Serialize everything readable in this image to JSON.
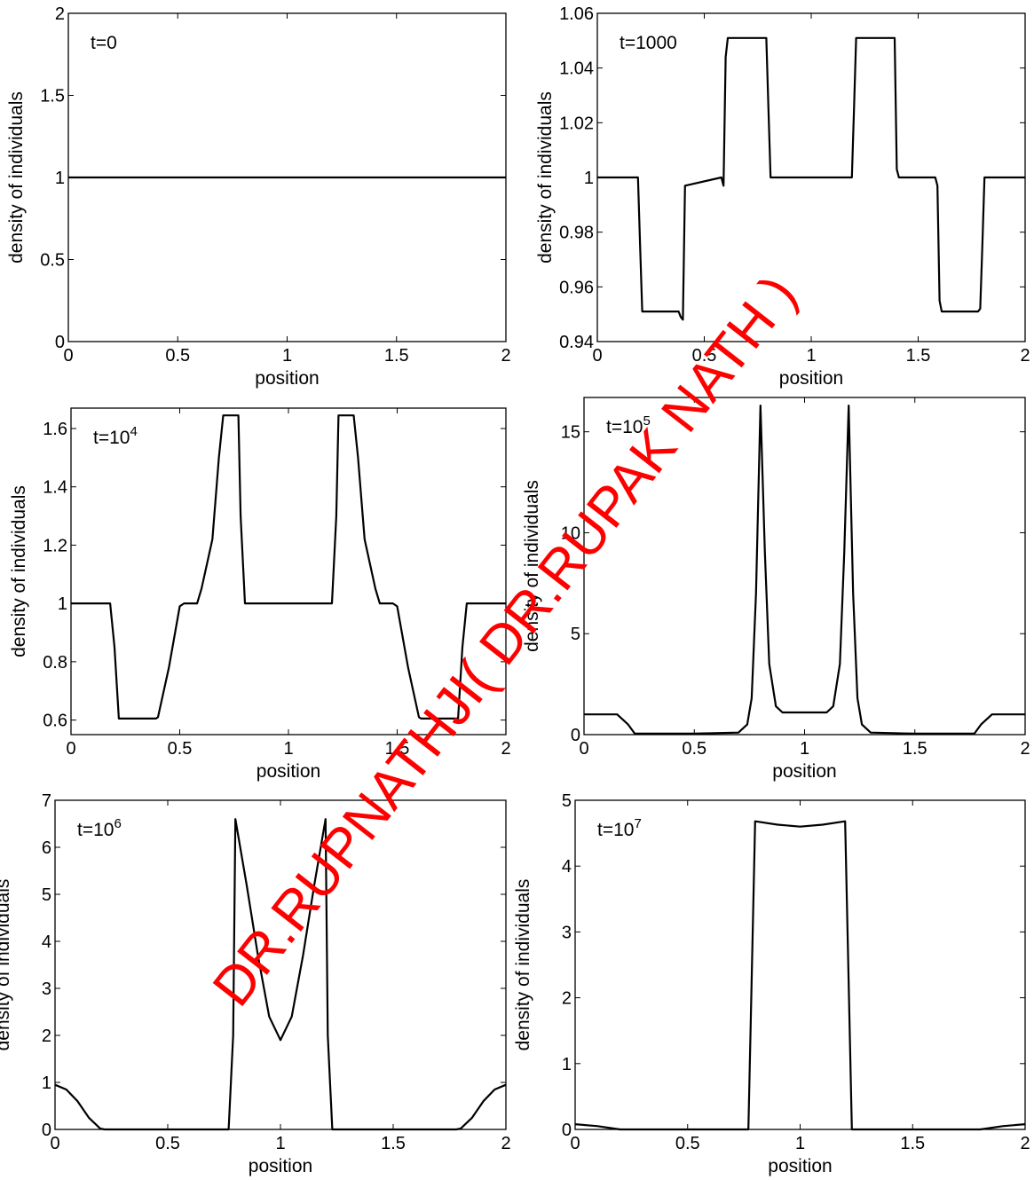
{
  "watermark": "DR.RUPNATHJI( DR.RUPAK NATH )",
  "colors": {
    "line": "#000000",
    "watermark": "#ff0000",
    "background": "#ffffff"
  },
  "chart_data": [
    {
      "type": "line",
      "panel_label": {
        "base": "t=0",
        "exp": ""
      },
      "xlabel": "position",
      "ylabel": "density of individuals",
      "xlim": [
        0,
        2
      ],
      "ylim": [
        0,
        2
      ],
      "xticks": [
        0,
        0.5,
        1,
        1.5,
        2
      ],
      "xtick_labels": [
        "0",
        "0.5",
        "1",
        "1.5",
        "2"
      ],
      "yticks": [
        0,
        0.5,
        1,
        1.5,
        2
      ],
      "ytick_labels": [
        "0",
        "0.5",
        "1",
        "1.5",
        "2"
      ],
      "grid": false,
      "x": [
        0,
        2
      ],
      "y": [
        1,
        1
      ]
    },
    {
      "type": "line",
      "panel_label": {
        "base": "t=1000",
        "exp": ""
      },
      "xlabel": "position",
      "ylabel": "density of individuals",
      "xlim": [
        0,
        2
      ],
      "ylim": [
        0.94,
        1.06
      ],
      "xticks": [
        0,
        0.5,
        1,
        1.5,
        2
      ],
      "xtick_labels": [
        "0",
        "0.5",
        "1",
        "1.5",
        "2"
      ],
      "yticks": [
        0.94,
        0.96,
        0.98,
        1,
        1.02,
        1.04,
        1.06
      ],
      "ytick_labels": [
        "0.94",
        "0.96",
        "0.98",
        "1",
        "1.02",
        "1.04",
        "1.06"
      ],
      "grid": false,
      "x": [
        0,
        0.19,
        0.2,
        0.21,
        0.38,
        0.39,
        0.4,
        0.41,
        0.58,
        0.59,
        0.6,
        0.61,
        0.79,
        0.8,
        0.81,
        1.19,
        1.2,
        1.21,
        1.39,
        1.4,
        1.41,
        1.58,
        1.59,
        1.6,
        1.61,
        1.78,
        1.79,
        1.8,
        1.81,
        2
      ],
      "y": [
        1,
        1,
        0.975,
        0.951,
        0.951,
        0.949,
        0.948,
        0.997,
        1,
        0.997,
        1.044,
        1.051,
        1.051,
        1.025,
        1,
        1,
        1.025,
        1.051,
        1.051,
        1.003,
        1,
        1,
        0.997,
        0.955,
        0.951,
        0.951,
        0.952,
        0.975,
        1,
        1
      ]
    },
    {
      "type": "line",
      "panel_label": {
        "base": "t=10",
        "exp": "4"
      },
      "xlabel": "position",
      "ylabel": "density of individuals",
      "xlim": [
        0,
        2
      ],
      "ylim": [
        0.55,
        1.67
      ],
      "xticks": [
        0,
        0.5,
        1,
        1.5,
        2
      ],
      "xtick_labels": [
        "0",
        "0.5",
        "1",
        "1.5",
        "2"
      ],
      "yticks": [
        0.6,
        0.8,
        1,
        1.2,
        1.4,
        1.6
      ],
      "ytick_labels": [
        "0.6",
        "0.8",
        "1",
        "1.2",
        "1.4",
        "1.6"
      ],
      "grid": false,
      "x": [
        0,
        0.18,
        0.2,
        0.22,
        0.39,
        0.4,
        0.45,
        0.5,
        0.52,
        0.58,
        0.6,
        0.65,
        0.68,
        0.7,
        0.77,
        0.78,
        0.8,
        1.2,
        1.22,
        1.23,
        1.3,
        1.32,
        1.35,
        1.4,
        1.42,
        1.48,
        1.5,
        1.55,
        1.6,
        1.61,
        1.78,
        1.8,
        1.82,
        2
      ],
      "y": [
        1,
        1,
        0.85,
        0.605,
        0.605,
        0.61,
        0.78,
        0.99,
        1,
        1.0,
        1.05,
        1.22,
        1.5,
        1.645,
        1.645,
        1.3,
        1.0,
        1.0,
        1.3,
        1.645,
        1.645,
        1.5,
        1.22,
        1.05,
        1.0,
        1.0,
        0.99,
        0.78,
        0.61,
        0.605,
        0.605,
        0.85,
        1,
        1
      ]
    },
    {
      "type": "line",
      "panel_label": {
        "base": "t=10",
        "exp": "5"
      },
      "xlabel": "position",
      "ylabel": "density of individuals",
      "xlim": [
        0,
        2
      ],
      "ylim": [
        0,
        16.7
      ],
      "xticks": [
        0,
        0.5,
        1,
        1.5,
        2
      ],
      "xtick_labels": [
        "0",
        "0.5",
        "1",
        "1.5",
        "2"
      ],
      "yticks": [
        0,
        5,
        10,
        15
      ],
      "ytick_labels": [
        "0",
        "5",
        "10",
        "15"
      ],
      "grid": false,
      "x": [
        0,
        0.15,
        0.2,
        0.23,
        0.5,
        0.7,
        0.74,
        0.76,
        0.78,
        0.8,
        0.82,
        0.84,
        0.87,
        0.9,
        1.1,
        1.13,
        1.16,
        1.18,
        1.2,
        1.22,
        1.24,
        1.26,
        1.3,
        1.5,
        1.77,
        1.8,
        1.85,
        2
      ],
      "y": [
        1,
        1,
        0.5,
        0.05,
        0.05,
        0.1,
        0.5,
        1.8,
        7,
        16.3,
        9,
        3.5,
        1.4,
        1.1,
        1.1,
        1.4,
        3.5,
        9,
        16.3,
        7,
        1.8,
        0.5,
        0.1,
        0.05,
        0.05,
        0.5,
        1,
        1
      ]
    },
    {
      "type": "line",
      "panel_label": {
        "base": "t=10",
        "exp": "6"
      },
      "xlabel": "position",
      "ylabel": "density of individuals",
      "xlim": [
        0,
        2
      ],
      "ylim": [
        0,
        7
      ],
      "xticks": [
        0,
        0.5,
        1,
        1.5,
        2
      ],
      "xtick_labels": [
        "0",
        "0.5",
        "1",
        "1.5",
        "2"
      ],
      "yticks": [
        0,
        1,
        2,
        3,
        4,
        5,
        6,
        7
      ],
      "ytick_labels": [
        "0",
        "1",
        "2",
        "3",
        "4",
        "5",
        "6",
        "7"
      ],
      "grid": false,
      "x": [
        0,
        0.05,
        0.1,
        0.15,
        0.2,
        0.22,
        0.5,
        0.77,
        0.79,
        0.8,
        0.85,
        0.9,
        0.95,
        1.0,
        1.05,
        1.1,
        1.15,
        1.2,
        1.21,
        1.23,
        1.5,
        1.78,
        1.8,
        1.85,
        1.9,
        1.95,
        2
      ],
      "y": [
        0.95,
        0.85,
        0.6,
        0.25,
        0.02,
        0.0,
        0.0,
        0.0,
        2.0,
        6.6,
        5.2,
        3.7,
        2.4,
        1.9,
        2.4,
        3.7,
        5.2,
        6.6,
        2.0,
        0.0,
        0.0,
        0.0,
        0.02,
        0.25,
        0.6,
        0.85,
        0.95
      ]
    },
    {
      "type": "line",
      "panel_label": {
        "base": "t=10",
        "exp": "7"
      },
      "xlabel": "position",
      "ylabel": "density of individuals",
      "xlim": [
        0,
        2
      ],
      "ylim": [
        0,
        5
      ],
      "xticks": [
        0,
        0.5,
        1,
        1.5,
        2
      ],
      "xtick_labels": [
        "0",
        "0.5",
        "1",
        "1.5",
        "2"
      ],
      "yticks": [
        0,
        1,
        2,
        3,
        4,
        5
      ],
      "ytick_labels": [
        "0",
        "1",
        "2",
        "3",
        "4",
        "5"
      ],
      "grid": false,
      "x": [
        0,
        0.1,
        0.2,
        0.5,
        0.77,
        0.8,
        0.9,
        1.0,
        1.1,
        1.2,
        1.23,
        1.5,
        1.8,
        1.9,
        2
      ],
      "y": [
        0.08,
        0.05,
        0.0,
        0.0,
        0.0,
        4.68,
        4.63,
        4.6,
        4.63,
        4.68,
        0.0,
        0.0,
        0.0,
        0.05,
        0.08
      ]
    }
  ]
}
